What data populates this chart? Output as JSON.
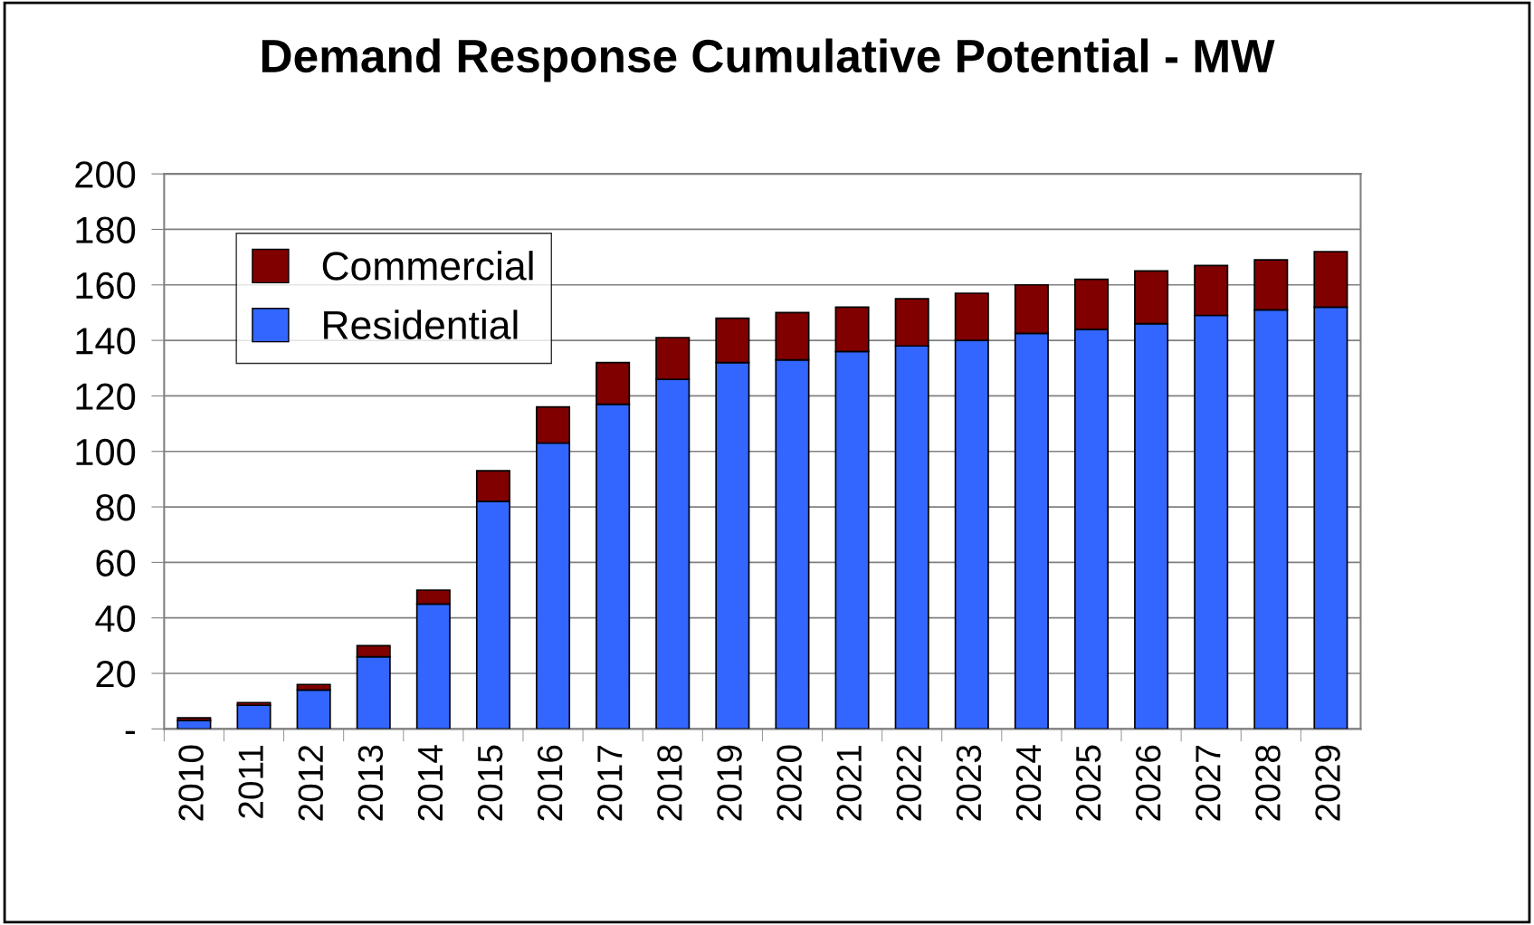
{
  "chart_data": {
    "type": "bar",
    "title": "Demand Response Cumulative Potential - MW",
    "categories": [
      "2010",
      "2011",
      "2012",
      "2013",
      "2014",
      "2015",
      "2016",
      "2017",
      "2018",
      "2019",
      "2020",
      "2021",
      "2022",
      "2023",
      "2024",
      "2025",
      "2026",
      "2027",
      "2028",
      "2029"
    ],
    "stacked": true,
    "series": [
      {
        "name": "Residential",
        "color": "#3366ff",
        "values": [
          3,
          8.5,
          14,
          26,
          45,
          82,
          103,
          117,
          126,
          132,
          133,
          136,
          138,
          140,
          142.5,
          144,
          146,
          149,
          151,
          152
        ]
      },
      {
        "name": "Commercial",
        "color": "#800000",
        "values": [
          1,
          1,
          2,
          4,
          5,
          11,
          13,
          15,
          15,
          16,
          17,
          16,
          17,
          17,
          17.5,
          18,
          19,
          18,
          18,
          20
        ]
      }
    ],
    "ylim": [
      0,
      200
    ],
    "yticks": [
      {
        "value": 0,
        "label": "-"
      },
      20,
      40,
      60,
      80,
      100,
      120,
      140,
      160,
      180,
      200
    ],
    "grid": "y",
    "legend": "top left"
  }
}
